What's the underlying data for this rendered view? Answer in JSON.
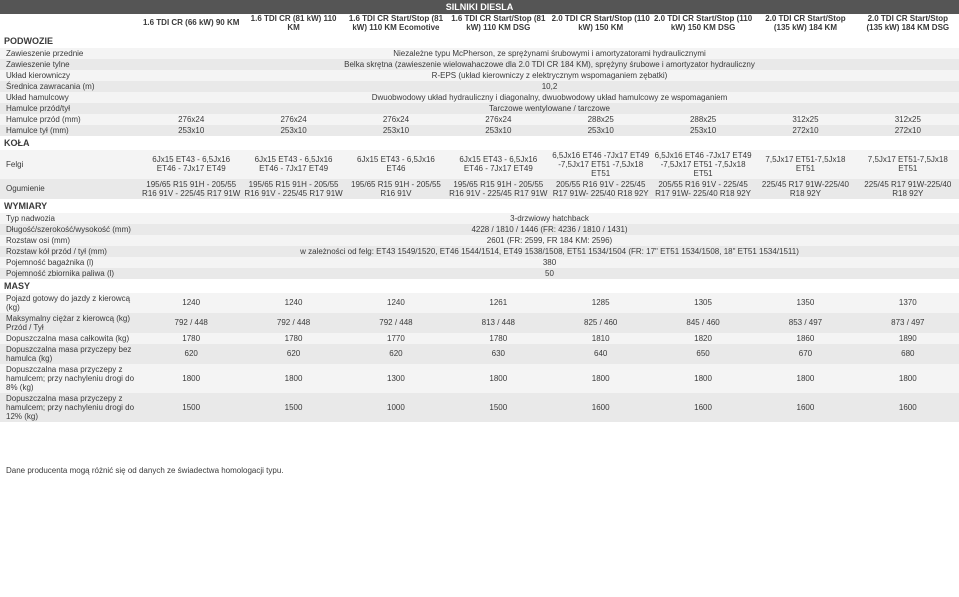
{
  "title": "SILNIKI DIESLA",
  "variants": [
    "1.6 TDI CR (66 kW) 90 KM",
    "1.6 TDI CR (81 kW) 110 KM",
    "1.6 TDI CR Start/Stop (81 kW) 110 KM Ecomotive",
    "1.6 TDI CR Start/Stop (81 kW) 110 KM DSG",
    "2.0 TDI CR Start/Stop (110 kW) 150 KM",
    "2.0 TDI CR Start/Stop (110 kW) 150 KM DSG",
    "2.0 TDI CR Start/Stop (135 kW) 184 KM",
    "2.0 TDI CR Start/Stop (135 kW) 184 KM DSG"
  ],
  "sections": [
    {
      "name": "PODWOZIE",
      "rows": [
        {
          "label": "Zawieszenie przednie",
          "span": "Niezależne typu McPherson, ze sprężynami śrubowymi i amortyzatorami hydraulicznymi"
        },
        {
          "label": "Zawieszenie tylne",
          "span": "Belka skrętna (zawieszenie wielowahaczowe dla 2.0 TDI CR 184 KM), sprężyny śrubowe i amortyzator hydrauliczny"
        },
        {
          "label": "Układ kierowniczy",
          "span": "R-EPS (układ kierowniczy z elektrycznym wspomaganiem zębatki)"
        },
        {
          "label": "Średnica zawracania (m)",
          "span": "10,2"
        },
        {
          "label": "Układ hamulcowy",
          "span": "Dwuobwodowy układ hydrauliczny i diagonalny, dwuobwodowy układ hamulcowy ze wspomaganiem"
        },
        {
          "label": "Hamulce przód/tył",
          "span": "Tarczowe wentylowane / tarczowe"
        },
        {
          "label": "Hamulce przód (mm)",
          "values": [
            "276x24",
            "276x24",
            "276x24",
            "276x24",
            "288x25",
            "288x25",
            "312x25",
            "312x25"
          ]
        },
        {
          "label": "Hamulce tył (mm)",
          "values": [
            "253x10",
            "253x10",
            "253x10",
            "253x10",
            "253x10",
            "253x10",
            "272x10",
            "272x10"
          ]
        }
      ]
    },
    {
      "name": "KOŁA",
      "rows": [
        {
          "label": "Felgi",
          "values": [
            "6Jx15 ET43 - 6,5Jx16 ET46 - 7Jx17 ET49",
            "6Jx15 ET43 - 6,5Jx16 ET46 - 7Jx17 ET49",
            "6Jx15 ET43 - 6,5Jx16 ET46",
            "6Jx15 ET43 - 6,5Jx16 ET46 - 7Jx17 ET49",
            "6,5Jx16 ET46 -7Jx17 ET49 -7,5Jx17 ET51 -7,5Jx18 ET51",
            "6,5Jx16 ET46 -7Jx17 ET49 -7,5Jx17 ET51 -7,5Jx18 ET51",
            "7,5Jx17 ET51-7,5Jx18 ET51",
            "7,5Jx17 ET51-7,5Jx18 ET51"
          ]
        },
        {
          "label": "Ogumienie",
          "values": [
            "195/65 R15 91H - 205/55 R16 91V - 225/45 R17 91W",
            "195/65 R15 91H - 205/55 R16 91V - 225/45 R17 91W",
            "195/65 R15 91H - 205/55 R16 91V",
            "195/65 R15 91H - 205/55 R16 91V - 225/45 R17 91W",
            "205/55 R16 91V - 225/45 R17 91W- 225/40 R18 92Y",
            "205/55 R16 91V - 225/45 R17 91W- 225/40 R18 92Y",
            "225/45 R17 91W-225/40 R18 92Y",
            "225/45 R17 91W-225/40 R18 92Y"
          ]
        }
      ]
    },
    {
      "name": "WYMIARY",
      "rows": [
        {
          "label": "Typ nadwozia",
          "span": "3-drzwiowy hatchback"
        },
        {
          "label": "Długość/szerokość/wysokość (mm)",
          "span": "4228 / 1810 / 1446 (FR: 4236 / 1810 / 1431)"
        },
        {
          "label": "Rozstaw osi (mm)",
          "span": "2601 (FR: 2599, FR 184 KM: 2596)"
        },
        {
          "label": "Rozstaw kół przód / tył (mm)",
          "span": "w zależności od felg: ET43 1549/1520, ET46 1544/1514, ET49 1538/1508, ET51 1534/1504 (FR: 17\" ET51 1534/1508, 18\" ET51 1534/1511)"
        },
        {
          "label": "Pojemność bagażnika (l)",
          "span": "380"
        },
        {
          "label": "Pojemność zbiornika paliwa (l)",
          "span": "50"
        }
      ]
    },
    {
      "name": "MASY",
      "rows": [
        {
          "label": "Pojazd gotowy do jazdy z kierowcą (kg)",
          "values": [
            "1240",
            "1240",
            "1240",
            "1261",
            "1285",
            "1305",
            "1350",
            "1370"
          ]
        },
        {
          "label": "Maksymalny ciężar z kierowcą (kg) Przód / Tył",
          "values": [
            "792 / 448",
            "792 / 448",
            "792 / 448",
            "813 / 448",
            "825 / 460",
            "845 / 460",
            "853 / 497",
            "873 / 497"
          ]
        },
        {
          "label": "Dopuszczalna masa całkowita (kg)",
          "values": [
            "1780",
            "1780",
            "1770",
            "1780",
            "1810",
            "1820",
            "1860",
            "1890"
          ]
        },
        {
          "label": "Dopuszczalna masa przyczepy bez hamulca (kg)",
          "values": [
            "620",
            "620",
            "620",
            "630",
            "640",
            "650",
            "670",
            "680"
          ]
        },
        {
          "label": "Dopuszczalna masa przyczepy z hamulcem; przy nachyleniu drogi do 8% (kg)",
          "values": [
            "1800",
            "1800",
            "1300",
            "1800",
            "1800",
            "1800",
            "1800",
            "1800"
          ]
        },
        {
          "label": "Dopuszczalna masa przyczepy z hamulcem; przy nachyleniu drogi do 12% (kg)",
          "values": [
            "1500",
            "1500",
            "1000",
            "1500",
            "1600",
            "1600",
            "1600",
            "1600"
          ]
        }
      ]
    }
  ],
  "footer": "Dane producenta mogą różnić się od danych ze świadectwa homologacji typu."
}
